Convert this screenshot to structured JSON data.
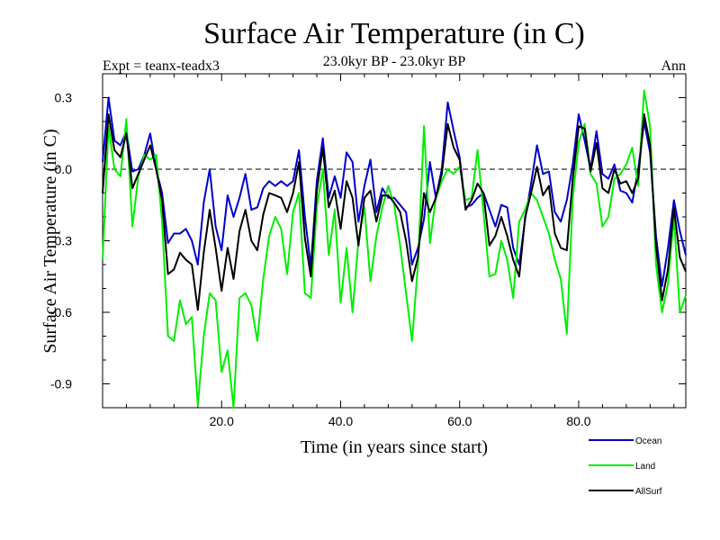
{
  "chart_data": {
    "type": "line",
    "title": "Surface Air Temperature (in C)",
    "subtitle": "23.0kyr BP - 23.0kyr BP",
    "left_label": "Expt = teanx-teadx3",
    "right_label": "Ann",
    "xlabel": "Time (in years since start)",
    "ylabel": "Surface Air Temperature (in C)",
    "xlim": [
      0,
      98
    ],
    "ylim": [
      -1.0,
      0.4
    ],
    "x_ticks": [
      20,
      40,
      60,
      80
    ],
    "x_tick_labels": [
      "20.0",
      "40.0",
      "60.0",
      "80.0"
    ],
    "y_ticks": [
      0.3,
      0.0,
      -0.3,
      -0.6,
      -0.9
    ],
    "y_tick_labels": [
      "0.3",
      "0.0",
      "-0.3",
      "-0.6",
      "-0.9"
    ],
    "zero_line": true,
    "x": [
      0,
      1,
      2,
      3,
      4,
      5,
      6,
      7,
      8,
      9,
      10,
      11,
      12,
      13,
      14,
      15,
      16,
      17,
      18,
      19,
      20,
      21,
      22,
      23,
      24,
      25,
      26,
      27,
      28,
      29,
      30,
      31,
      32,
      33,
      34,
      35,
      36,
      37,
      38,
      39,
      40,
      41,
      42,
      43,
      44,
      45,
      46,
      47,
      48,
      49,
      50,
      51,
      52,
      53,
      54,
      55,
      56,
      57,
      58,
      59,
      60,
      61,
      62,
      63,
      64,
      65,
      66,
      67,
      68,
      69,
      70,
      71,
      72,
      73,
      74,
      75,
      76,
      77,
      78,
      79,
      80,
      81,
      82,
      83,
      84,
      85,
      86,
      87,
      88,
      89,
      90,
      91,
      92,
      93,
      94,
      95,
      96,
      97,
      98
    ],
    "series": [
      {
        "name": "Ocean",
        "color": "#0000cc",
        "values": [
          0.03,
          0.3,
          0.12,
          0.1,
          0.16,
          -0.01,
          0.0,
          0.06,
          0.15,
          0.0,
          -0.1,
          -0.31,
          -0.27,
          -0.27,
          -0.25,
          -0.3,
          -0.4,
          -0.14,
          0.0,
          -0.24,
          -0.34,
          -0.11,
          -0.2,
          -0.12,
          -0.02,
          -0.17,
          -0.16,
          -0.08,
          -0.05,
          -0.07,
          -0.05,
          -0.07,
          -0.05,
          0.08,
          -0.2,
          -0.41,
          -0.05,
          0.13,
          -0.12,
          -0.03,
          -0.12,
          0.07,
          0.03,
          -0.22,
          -0.07,
          0.04,
          -0.18,
          -0.08,
          -0.12,
          -0.12,
          -0.15,
          -0.18,
          -0.4,
          -0.33,
          -0.21,
          0.03,
          -0.12,
          0.0,
          0.28,
          0.16,
          0.05,
          -0.16,
          -0.15,
          -0.12,
          -0.1,
          -0.17,
          -0.24,
          -0.15,
          -0.16,
          -0.33,
          -0.4,
          -0.21,
          -0.06,
          0.1,
          -0.02,
          -0.01,
          -0.18,
          -0.22,
          -0.13,
          0.02,
          0.23,
          0.12,
          0.0,
          0.16,
          -0.02,
          -0.04,
          0.02,
          -0.09,
          -0.1,
          -0.14,
          0.0,
          0.2,
          0.07,
          -0.28,
          -0.49,
          -0.33,
          -0.13,
          -0.26,
          -0.36
        ]
      },
      {
        "name": "Land",
        "color": "#00ee00",
        "values": [
          -0.38,
          0.18,
          0.0,
          -0.03,
          0.21,
          -0.24,
          -0.03,
          0.06,
          0.04,
          0.06,
          -0.22,
          -0.7,
          -0.72,
          -0.55,
          -0.65,
          -0.62,
          -0.99,
          -0.7,
          -0.52,
          -0.55,
          -0.85,
          -0.76,
          -1.0,
          -0.54,
          -0.52,
          -0.57,
          -0.72,
          -0.46,
          -0.28,
          -0.2,
          -0.25,
          -0.44,
          -0.18,
          -0.1,
          -0.52,
          -0.54,
          -0.16,
          0.0,
          -0.36,
          -0.17,
          -0.56,
          -0.33,
          -0.6,
          -0.3,
          -0.16,
          -0.47,
          -0.28,
          -0.16,
          -0.07,
          -0.15,
          -0.32,
          -0.52,
          -0.72,
          -0.4,
          0.18,
          -0.31,
          -0.12,
          -0.05,
          0.0,
          -0.02,
          0.01,
          -0.13,
          -0.12,
          0.08,
          -0.18,
          -0.45,
          -0.44,
          -0.3,
          -0.38,
          -0.54,
          -0.22,
          -0.17,
          -0.1,
          -0.13,
          -0.2,
          -0.27,
          -0.38,
          -0.46,
          -0.69,
          -0.12,
          0.11,
          0.19,
          -0.02,
          -0.06,
          -0.24,
          -0.2,
          -0.04,
          -0.02,
          0.02,
          0.09,
          -0.07,
          0.33,
          0.18,
          -0.4,
          -0.6,
          -0.48,
          -0.2,
          -0.6,
          -0.53
        ]
      },
      {
        "name": "AllSurf",
        "color": "#000000",
        "values": [
          -0.1,
          0.23,
          0.08,
          0.05,
          0.15,
          -0.08,
          -0.02,
          0.04,
          0.1,
          0.0,
          -0.13,
          -0.44,
          -0.42,
          -0.35,
          -0.38,
          -0.4,
          -0.59,
          -0.35,
          -0.17,
          -0.33,
          -0.51,
          -0.33,
          -0.46,
          -0.26,
          -0.17,
          -0.3,
          -0.34,
          -0.19,
          -0.1,
          -0.11,
          -0.12,
          -0.18,
          -0.1,
          0.03,
          -0.29,
          -0.45,
          -0.09,
          0.09,
          -0.16,
          -0.09,
          -0.25,
          -0.05,
          -0.12,
          -0.32,
          -0.12,
          -0.09,
          -0.22,
          -0.11,
          -0.11,
          -0.14,
          -0.18,
          -0.3,
          -0.47,
          -0.37,
          -0.1,
          -0.18,
          -0.12,
          -0.02,
          0.19,
          0.09,
          0.04,
          -0.17,
          -0.13,
          -0.06,
          -0.1,
          -0.32,
          -0.28,
          -0.2,
          -0.28,
          -0.38,
          -0.45,
          -0.2,
          -0.1,
          0.01,
          -0.11,
          -0.07,
          -0.27,
          -0.33,
          -0.34,
          -0.04,
          0.18,
          0.17,
          -0.01,
          0.11,
          -0.08,
          -0.1,
          0.0,
          -0.06,
          -0.05,
          -0.1,
          -0.04,
          0.23,
          0.1,
          -0.32,
          -0.55,
          -0.42,
          -0.16,
          -0.37,
          -0.43
        ]
      }
    ],
    "legend_position": "bottom-right"
  }
}
